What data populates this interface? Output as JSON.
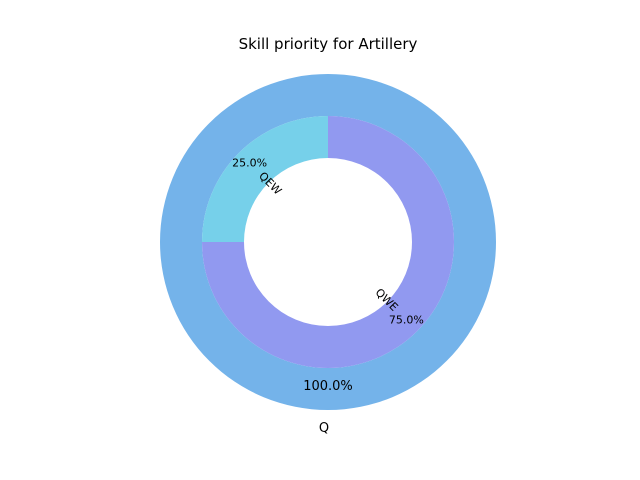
{
  "chart_data": {
    "type": "pie",
    "title": "Skill priority for Artillery",
    "outer": {
      "labels": [
        "Q"
      ],
      "values": [
        100
      ],
      "percent_labels": [
        "100.0%"
      ],
      "colors": [
        "#74b3ea"
      ]
    },
    "inner": {
      "labels": [
        "QWE",
        "QEW"
      ],
      "values": [
        75,
        25
      ],
      "percent_labels": [
        "75.0%",
        "25.0%"
      ],
      "colors": [
        "#9199f0",
        "#76d0ea"
      ]
    }
  }
}
